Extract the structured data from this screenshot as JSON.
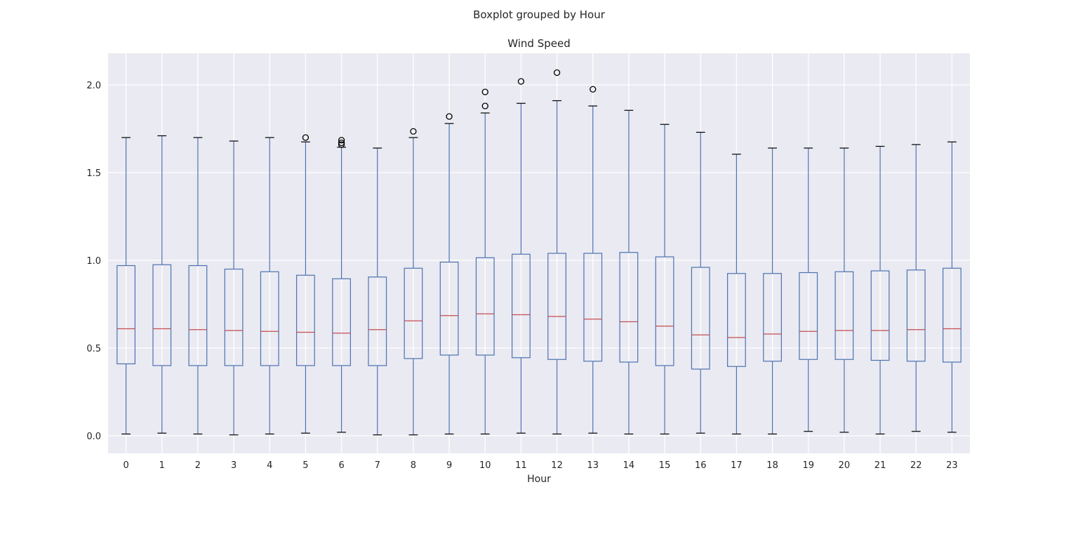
{
  "suptitle": "Boxplot grouped by Hour",
  "chart_data": {
    "type": "box",
    "title": "Wind Speed",
    "xlabel": "Hour",
    "ylabel": "",
    "ylim": [
      -0.1,
      2.18
    ],
    "yticks": [
      0.0,
      0.5,
      1.0,
      1.5,
      2.0
    ],
    "ytick_labels": [
      "0.0",
      "0.5",
      "1.0",
      "1.5",
      "2.0"
    ],
    "grid": true,
    "categories": [
      "0",
      "1",
      "2",
      "3",
      "4",
      "5",
      "6",
      "7",
      "8",
      "9",
      "10",
      "11",
      "12",
      "13",
      "14",
      "15",
      "16",
      "17",
      "18",
      "19",
      "20",
      "21",
      "22",
      "23"
    ],
    "boxes": [
      {
        "whislo": 0.01,
        "q1": 0.41,
        "med": 0.61,
        "q3": 0.97,
        "whishi": 1.7,
        "fliers": []
      },
      {
        "whislo": 0.015,
        "q1": 0.4,
        "med": 0.61,
        "q3": 0.975,
        "whishi": 1.71,
        "fliers": []
      },
      {
        "whislo": 0.01,
        "q1": 0.4,
        "med": 0.605,
        "q3": 0.97,
        "whishi": 1.7,
        "fliers": []
      },
      {
        "whislo": 0.005,
        "q1": 0.4,
        "med": 0.6,
        "q3": 0.95,
        "whishi": 1.68,
        "fliers": []
      },
      {
        "whislo": 0.01,
        "q1": 0.4,
        "med": 0.595,
        "q3": 0.935,
        "whishi": 1.7,
        "fliers": []
      },
      {
        "whislo": 0.015,
        "q1": 0.4,
        "med": 0.59,
        "q3": 0.915,
        "whishi": 1.675,
        "fliers": [
          1.7
        ]
      },
      {
        "whislo": 0.02,
        "q1": 0.4,
        "med": 0.585,
        "q3": 0.895,
        "whishi": 1.645,
        "fliers": [
          1.66,
          1.67,
          1.685
        ]
      },
      {
        "whislo": 0.005,
        "q1": 0.4,
        "med": 0.605,
        "q3": 0.905,
        "whishi": 1.64,
        "fliers": []
      },
      {
        "whislo": 0.005,
        "q1": 0.44,
        "med": 0.655,
        "q3": 0.955,
        "whishi": 1.7,
        "fliers": [
          1.735
        ]
      },
      {
        "whislo": 0.01,
        "q1": 0.46,
        "med": 0.685,
        "q3": 0.99,
        "whishi": 1.78,
        "fliers": [
          1.82
        ]
      },
      {
        "whislo": 0.01,
        "q1": 0.46,
        "med": 0.695,
        "q3": 1.015,
        "whishi": 1.84,
        "fliers": [
          1.88,
          1.96
        ]
      },
      {
        "whislo": 0.015,
        "q1": 0.445,
        "med": 0.69,
        "q3": 1.035,
        "whishi": 1.895,
        "fliers": [
          2.02
        ]
      },
      {
        "whislo": 0.01,
        "q1": 0.435,
        "med": 0.68,
        "q3": 1.04,
        "whishi": 1.91,
        "fliers": [
          2.07
        ]
      },
      {
        "whislo": 0.015,
        "q1": 0.425,
        "med": 0.665,
        "q3": 1.04,
        "whishi": 1.88,
        "fliers": [
          1.975
        ]
      },
      {
        "whislo": 0.01,
        "q1": 0.42,
        "med": 0.65,
        "q3": 1.045,
        "whishi": 1.855,
        "fliers": []
      },
      {
        "whislo": 0.01,
        "q1": 0.4,
        "med": 0.625,
        "q3": 1.02,
        "whishi": 1.775,
        "fliers": []
      },
      {
        "whislo": 0.015,
        "q1": 0.38,
        "med": 0.575,
        "q3": 0.96,
        "whishi": 1.73,
        "fliers": []
      },
      {
        "whislo": 0.01,
        "q1": 0.395,
        "med": 0.56,
        "q3": 0.925,
        "whishi": 1.605,
        "fliers": []
      },
      {
        "whislo": 0.01,
        "q1": 0.425,
        "med": 0.58,
        "q3": 0.925,
        "whishi": 1.64,
        "fliers": []
      },
      {
        "whislo": 0.025,
        "q1": 0.435,
        "med": 0.595,
        "q3": 0.93,
        "whishi": 1.64,
        "fliers": []
      },
      {
        "whislo": 0.02,
        "q1": 0.435,
        "med": 0.6,
        "q3": 0.935,
        "whishi": 1.64,
        "fliers": []
      },
      {
        "whislo": 0.01,
        "q1": 0.43,
        "med": 0.6,
        "q3": 0.94,
        "whishi": 1.65,
        "fliers": []
      },
      {
        "whislo": 0.025,
        "q1": 0.425,
        "med": 0.605,
        "q3": 0.945,
        "whishi": 1.66,
        "fliers": []
      },
      {
        "whislo": 0.02,
        "q1": 0.42,
        "med": 0.61,
        "q3": 0.955,
        "whishi": 1.675,
        "fliers": []
      }
    ],
    "colors": {
      "plot_bg": "#eaeaf2",
      "grid": "#ffffff",
      "box": "#4c72b0",
      "median": "#c44e52",
      "cap": "#000000",
      "flier": "#000000"
    }
  }
}
